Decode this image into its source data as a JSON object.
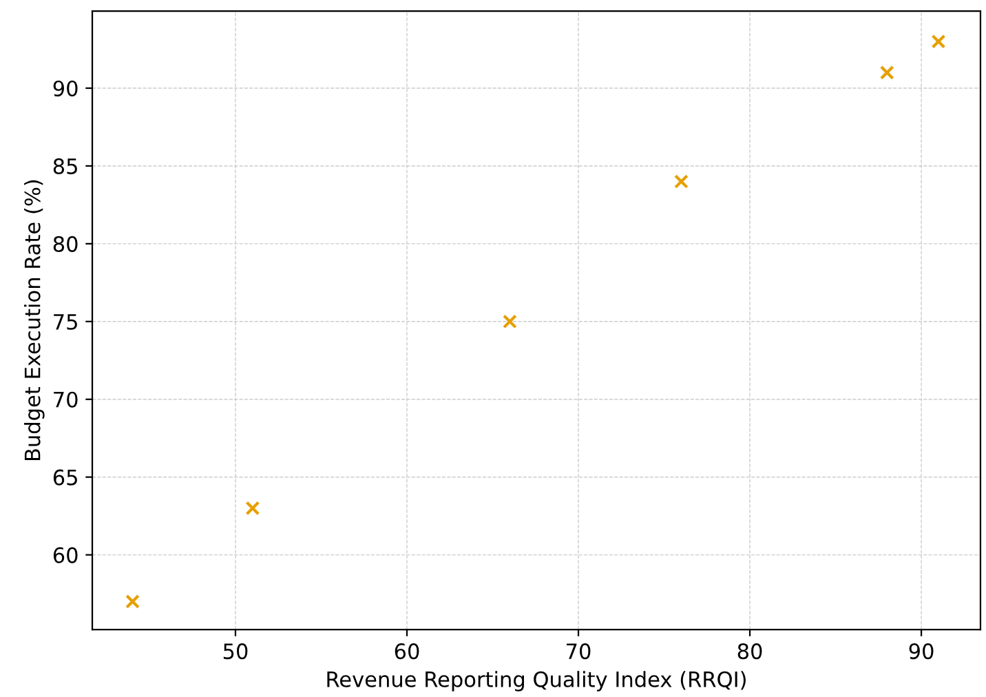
{
  "chart_data": {
    "type": "scatter",
    "xlabel": "Revenue Reporting Quality Index (RRQI)",
    "ylabel": "Budget Execution Rate (%)",
    "x": [
      44,
      51,
      66,
      76,
      88,
      91
    ],
    "series": [
      {
        "color": "#e69f00",
        "values": [
          57,
          63,
          75,
          84,
          91,
          93
        ]
      }
    ],
    "xlim": [
      41.65,
      93.45
    ],
    "ylim": [
      55.2,
      94.95
    ],
    "xticks": [
      50,
      60,
      70,
      80,
      90
    ],
    "yticks": [
      60,
      65,
      70,
      75,
      80,
      85,
      90
    ],
    "grid": true,
    "marker": "cross"
  }
}
